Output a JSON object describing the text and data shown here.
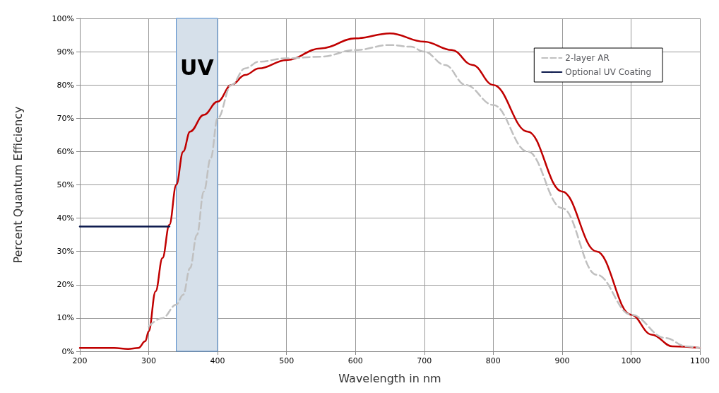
{
  "chart_data": {
    "type": "line",
    "xlabel": "Wavelength in nm",
    "ylabel": "Percent Quantum Efficiency",
    "xlim": [
      200,
      1100
    ],
    "xticks": [
      200,
      300,
      400,
      500,
      600,
      700,
      800,
      900,
      1000,
      1100
    ],
    "ylim": [
      0,
      100
    ],
    "yticks": [
      {
        "value": 0,
        "label": "0%"
      },
      {
        "value": 10,
        "label": "10%"
      },
      {
        "value": 20,
        "label": "20%"
      },
      {
        "value": 30,
        "label": "30%"
      },
      {
        "value": 40,
        "label": "40%"
      },
      {
        "value": 50,
        "label": "50%"
      },
      {
        "value": 60,
        "label": "60%"
      },
      {
        "value": 70,
        "label": "70%"
      },
      {
        "value": 80,
        "label": "80%"
      },
      {
        "value": 90,
        "label": "90%"
      },
      {
        "value": 100,
        "label": "100%"
      }
    ],
    "grid": true,
    "legend": "top right",
    "marker": "none",
    "bands": [
      {
        "axis": "x",
        "from": 340,
        "to": 400,
        "label": "UV",
        "color": "#d6e0ea"
      }
    ],
    "series": [
      {
        "color": "#c00000",
        "line_style": "solid",
        "x": [
          200,
          250,
          270,
          285,
          295,
          300,
          310,
          320,
          330,
          340,
          350,
          360,
          380,
          400,
          420,
          440,
          460,
          500,
          550,
          600,
          650,
          700,
          740,
          770,
          800,
          850,
          900,
          950,
          1000,
          1030,
          1060,
          1100
        ],
        "values": [
          1,
          1,
          0.7,
          1,
          3,
          6,
          18,
          28,
          38,
          50,
          60,
          66,
          71,
          75,
          80,
          83,
          85,
          87.5,
          91,
          94,
          95.5,
          93,
          90.5,
          86,
          80,
          66,
          48,
          30,
          11,
          5,
          1.5,
          1
        ]
      },
      {
        "name": "2-layer AR",
        "color": "#c0c0c0",
        "line_style": "dashed",
        "x": [
          300,
          320,
          340,
          350,
          360,
          370,
          380,
          390,
          400,
          420,
          440,
          460,
          500,
          550,
          600,
          650,
          680,
          700,
          730,
          760,
          800,
          850,
          900,
          950,
          1000,
          1050,
          1080,
          1100
        ],
        "values": [
          7.5,
          10,
          14,
          17,
          25,
          35,
          48,
          58,
          70,
          80,
          85,
          87,
          88,
          88.5,
          90.5,
          92,
          91.5,
          90,
          86,
          80,
          74,
          60,
          43,
          23,
          11,
          4,
          1.5,
          1
        ]
      },
      {
        "name": "Optional UV Coating",
        "color": "#0d1a4d",
        "line_style": "solid",
        "x": [
          200,
          330
        ],
        "values": [
          37.5,
          37.5
        ]
      }
    ]
  }
}
